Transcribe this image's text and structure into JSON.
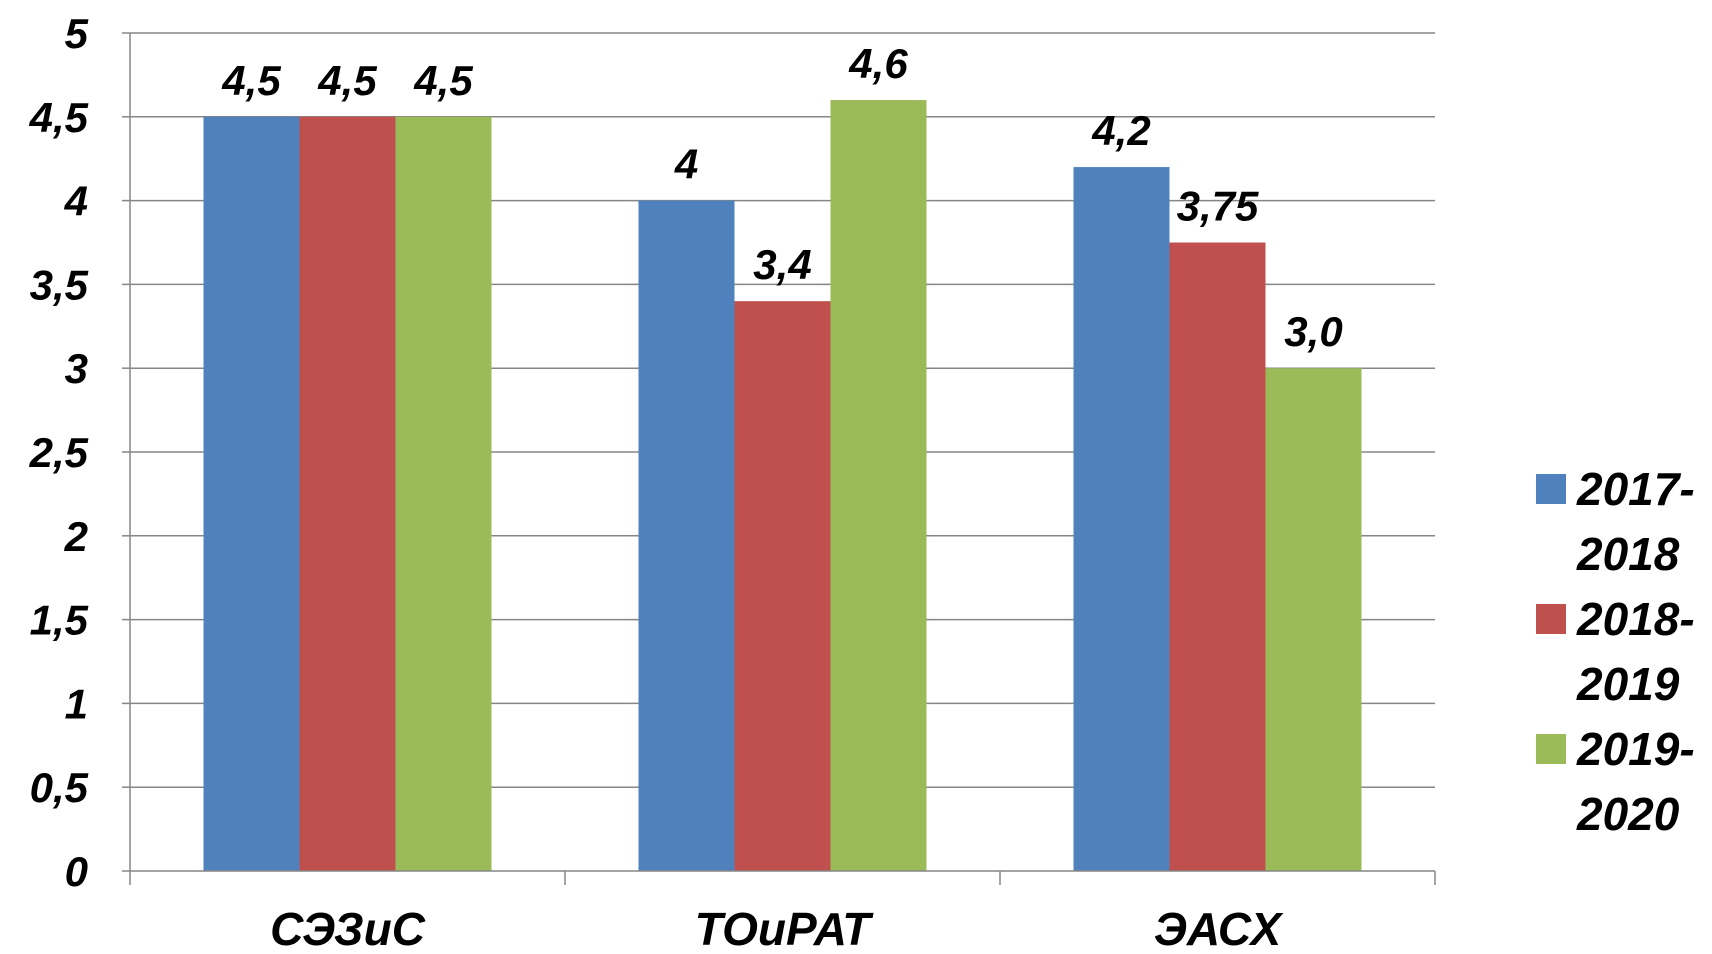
{
  "chart_data": {
    "type": "bar",
    "categories": [
      "СЭЗиС",
      "ТОиРАТ",
      "ЭАСХ"
    ],
    "series": [
      {
        "name": "2017-2018",
        "name_lines": [
          "2017-",
          "2018"
        ],
        "color": "#4F81BD",
        "values": [
          4.5,
          4.0,
          4.2
        ],
        "labels": [
          "4,5",
          "4",
          "4,2"
        ]
      },
      {
        "name": "2018-2019",
        "name_lines": [
          "2018-",
          "2019"
        ],
        "color": "#C0504D",
        "values": [
          4.5,
          3.4,
          3.75
        ],
        "labels": [
          "4,5",
          "3,4",
          "3,75"
        ]
      },
      {
        "name": "2019-2020",
        "name_lines": [
          "2019-",
          "2020"
        ],
        "color": "#9BBB59",
        "values": [
          4.5,
          4.6,
          3.0
        ],
        "labels": [
          "4,5",
          "4,6",
          "3,0"
        ]
      }
    ],
    "ylim": [
      0,
      5
    ],
    "yticks": [
      0,
      0.5,
      1,
      1.5,
      2,
      2.5,
      3,
      3.5,
      4,
      4.5,
      5
    ],
    "ytick_labels": [
      "0",
      "0,5",
      "1",
      "1,5",
      "2",
      "2,5",
      "3",
      "3,5",
      "4",
      "4,5",
      "5"
    ],
    "title": "",
    "xlabel": "",
    "ylabel": "",
    "grid": true,
    "legend_position": "right"
  }
}
